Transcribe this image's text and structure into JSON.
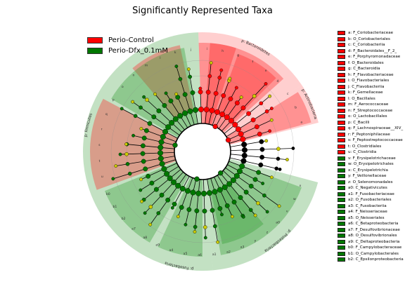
{
  "title": "Significantly Represented Taxa",
  "colors": {
    "control": "#ff0000",
    "dfx": "#007700",
    "neutral": "#cccc00",
    "control_bg": "#ff8080",
    "dfx_bg": "#60b060"
  },
  "legend": [
    {
      "label": "Perio-Control",
      "color": "#ff0000"
    },
    {
      "label": "Perio-Dfx_0.1mM",
      "color": "#007700"
    }
  ],
  "clade_labels": [
    {
      "text": "p: Bacteroidetes",
      "group": "control"
    },
    {
      "text": "p: Actinobacteria",
      "group": "control"
    },
    {
      "text": "p: Firmicutes",
      "group": "dfx"
    },
    {
      "text": "p: Fusobacteria",
      "group": "dfx"
    },
    {
      "text": "p: Proteobacteria",
      "group": "dfx"
    }
  ],
  "key": [
    {
      "text": "a: F_Coriobacteriaceae",
      "group": "control"
    },
    {
      "text": "b: O_Coriobacteriales",
      "group": "control"
    },
    {
      "text": "c: C_Coriobacteriia",
      "group": "control"
    },
    {
      "text": "d: F_Bacteroidales__F_2_",
      "group": "control"
    },
    {
      "text": "e: F_Porphyromonadaceae",
      "group": "control"
    },
    {
      "text": "f: O_Bacteroidales",
      "group": "control"
    },
    {
      "text": "g: C_Bacteroidia",
      "group": "control"
    },
    {
      "text": "h: F_Flavobacteriaceae",
      "group": "control"
    },
    {
      "text": "i: O_Flavobacteriales",
      "group": "control"
    },
    {
      "text": "j: C_Flavobacteriia",
      "group": "control"
    },
    {
      "text": "k: F_Gemellaceae",
      "group": "control"
    },
    {
      "text": "l: O_Bacillales",
      "group": "control"
    },
    {
      "text": "m: F_Aerococcaceae",
      "group": "control"
    },
    {
      "text": "n: F_Streptococcaceae",
      "group": "control"
    },
    {
      "text": "o: O_Lactobacillales",
      "group": "control"
    },
    {
      "text": "p: C_Bacilli",
      "group": "control"
    },
    {
      "text": "q: F_Lachnospiraceae__XIV_",
      "group": "control"
    },
    {
      "text": "r: F_Peptoniphilaceae",
      "group": "control"
    },
    {
      "text": "s: F_Peptostreptococcaceae",
      "group": "control"
    },
    {
      "text": "t: O_Clostridiales",
      "group": "control"
    },
    {
      "text": "u: C_Clostridia",
      "group": "control"
    },
    {
      "text": "v: F_Erysipelotrichaceae",
      "group": "dfx"
    },
    {
      "text": "w: O_Erysipelotrichales",
      "group": "dfx"
    },
    {
      "text": "x: C_Erysipelotrichia",
      "group": "dfx"
    },
    {
      "text": "y: F_Veillonellaceae",
      "group": "dfx"
    },
    {
      "text": "z: O_Selenomonadales",
      "group": "dfx"
    },
    {
      "text": "a0: C_Negativicutes",
      "group": "dfx"
    },
    {
      "text": "a1: F_Fusobacteriaceae",
      "group": "dfx"
    },
    {
      "text": "a2: O_Fusobacteriales",
      "group": "dfx"
    },
    {
      "text": "a3: C_Fusobacteriia",
      "group": "dfx"
    },
    {
      "text": "a4: F_Neisseriaceae",
      "group": "dfx"
    },
    {
      "text": "a5: O_Neisseriales",
      "group": "dfx"
    },
    {
      "text": "a6: C_Betaproteobacteria",
      "group": "dfx"
    },
    {
      "text": "a7: F_Desulfovibrionaceae",
      "group": "dfx"
    },
    {
      "text": "a8: O_Desulfovibrionales",
      "group": "dfx"
    },
    {
      "text": "a9: C_Deltaproteobacteria",
      "group": "dfx"
    },
    {
      "text": "b0: F_Campylobacteraceae",
      "group": "dfx"
    },
    {
      "text": "b1: O_Campylobacterales",
      "group": "dfx"
    },
    {
      "text": "b2: C_Epsilonproteobacteria",
      "group": "dfx"
    }
  ],
  "ring_letters": [
    {
      "text": "i",
      "group": "control"
    },
    {
      "text": "h",
      "group": "control"
    },
    {
      "text": "g",
      "group": "control"
    },
    {
      "text": "f",
      "group": "control"
    },
    {
      "text": "e",
      "group": "control"
    },
    {
      "text": "d",
      "group": "control"
    },
    {
      "text": "c",
      "group": "control"
    },
    {
      "text": "b",
      "group": "control"
    },
    {
      "text": "a",
      "group": "control"
    },
    {
      "text": "u",
      "group": "control"
    },
    {
      "text": "t",
      "group": "control"
    },
    {
      "text": "s",
      "group": "control"
    },
    {
      "text": "r",
      "group": "control"
    },
    {
      "text": "q",
      "group": "control"
    },
    {
      "text": "p",
      "group": "control"
    },
    {
      "text": "o",
      "group": "control"
    },
    {
      "text": "n",
      "group": "control"
    },
    {
      "text": "m",
      "group": "control"
    },
    {
      "text": "l",
      "group": "control"
    },
    {
      "text": "k",
      "group": "control"
    },
    {
      "text": "j",
      "group": "control"
    },
    {
      "text": "x",
      "group": "dfx"
    },
    {
      "text": "w",
      "group": "dfx"
    },
    {
      "text": "v",
      "group": "dfx"
    },
    {
      "text": "a0",
      "group": "dfx"
    },
    {
      "text": "z",
      "group": "dfx"
    },
    {
      "text": "y",
      "group": "dfx"
    },
    {
      "text": "a3",
      "group": "dfx"
    },
    {
      "text": "a2",
      "group": "dfx"
    },
    {
      "text": "a1",
      "group": "dfx"
    },
    {
      "text": "a6",
      "group": "dfx"
    },
    {
      "text": "a5",
      "group": "dfx"
    },
    {
      "text": "a4",
      "group": "dfx"
    },
    {
      "text": "a9",
      "group": "dfx"
    },
    {
      "text": "a8",
      "group": "dfx"
    },
    {
      "text": "a7",
      "group": "dfx"
    },
    {
      "text": "b2",
      "group": "dfx"
    },
    {
      "text": "b1",
      "group": "dfx"
    },
    {
      "text": "b0",
      "group": "dfx"
    }
  ]
}
